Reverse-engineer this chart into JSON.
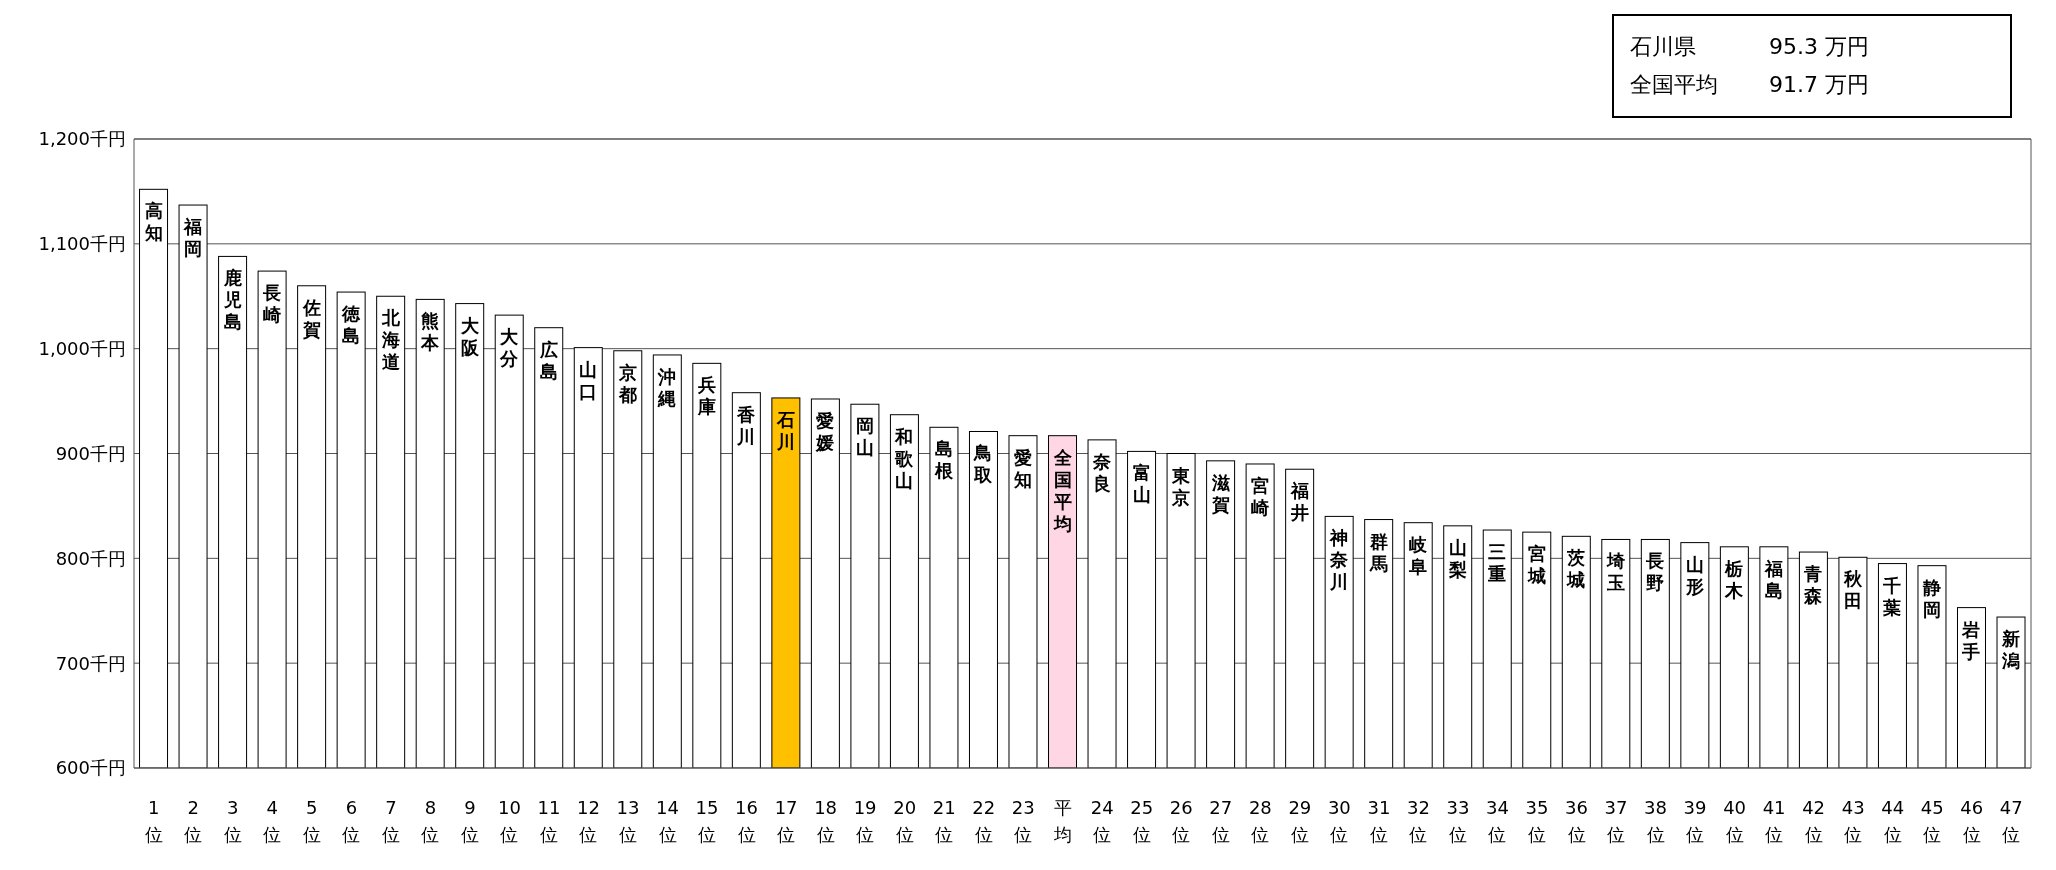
{
  "chart_data": {
    "type": "bar",
    "categories": [
      "1位",
      "2位",
      "3位",
      "4位",
      "5位",
      "6位",
      "7位",
      "8位",
      "9位",
      "10位",
      "11位",
      "12位",
      "13位",
      "14位",
      "15位",
      "16位",
      "17位",
      "18位",
      "19位",
      "20位",
      "21位",
      "22位",
      "23位",
      "平均",
      "24位",
      "25位",
      "26位",
      "27位",
      "28位",
      "29位",
      "30位",
      "31位",
      "32位",
      "33位",
      "34位",
      "35位",
      "36位",
      "37位",
      "38位",
      "39位",
      "40位",
      "41位",
      "42位",
      "43位",
      "44位",
      "45位",
      "46位",
      "47位"
    ],
    "values": [
      1152,
      1137,
      1088,
      1074,
      1060,
      1054,
      1050,
      1047,
      1043,
      1032,
      1020,
      1001,
      998,
      994,
      986,
      958,
      953,
      952,
      947,
      937,
      925,
      921,
      917,
      917,
      913,
      902,
      900,
      893,
      890,
      885,
      840,
      837,
      834,
      831,
      827,
      825,
      821,
      818,
      818,
      815,
      811,
      811,
      806,
      801,
      795,
      793,
      753,
      744
    ],
    "colors": [
      "#ffffff",
      "#ffffff",
      "#ffffff",
      "#ffffff",
      "#ffffff",
      "#ffffff",
      "#ffffff",
      "#ffffff",
      "#ffffff",
      "#ffffff",
      "#ffffff",
      "#ffffff",
      "#ffffff",
      "#ffffff",
      "#ffffff",
      "#ffffff",
      "#ffc000",
      "#ffffff",
      "#ffffff",
      "#ffffff",
      "#ffffff",
      "#ffffff",
      "#ffffff",
      "#ffd6e4",
      "#ffffff",
      "#ffffff",
      "#ffffff",
      "#ffffff",
      "#ffffff",
      "#ffffff",
      "#ffffff",
      "#ffffff",
      "#ffffff",
      "#ffffff",
      "#ffffff",
      "#ffffff",
      "#ffffff",
      "#ffffff",
      "#ffffff",
      "#ffffff",
      "#ffffff",
      "#ffffff",
      "#ffffff",
      "#ffffff",
      "#ffffff",
      "#ffffff",
      "#ffffff",
      "#ffffff"
    ],
    "ylim": [
      600,
      1200
    ],
    "yticks": [
      {
        "value": 600,
        "label": "600千円"
      },
      {
        "value": 700,
        "label": "700千円"
      },
      {
        "value": 800,
        "label": "800千円"
      },
      {
        "value": 900,
        "label": "900千円"
      },
      {
        "value": 1000,
        "label": "1,000千円"
      },
      {
        "value": 1100,
        "label": "1,100千円"
      },
      {
        "value": 1200,
        "label": "1,200千円"
      }
    ],
    "grid": "y",
    "annotations": [
      "石川県　　　 95.3 万円",
      "全国平均　　 91.7 万円",
      {
        "text": "高知",
        "x": "1位",
        "y": 1152
      },
      {
        "text": "福岡",
        "x": "2位",
        "y": 1137
      },
      {
        "text": "鹿児島",
        "x": "3位",
        "y": 1088
      },
      {
        "text": "長崎",
        "x": "4位",
        "y": 1074
      },
      {
        "text": "佐賀",
        "x": "5位",
        "y": 1060
      },
      {
        "text": "徳島",
        "x": "6位",
        "y": 1054
      },
      {
        "text": "北海道",
        "x": "7位",
        "y": 1050
      },
      {
        "text": "熊本",
        "x": "8位",
        "y": 1047
      },
      {
        "text": "大阪",
        "x": "9位",
        "y": 1043
      },
      {
        "text": "大分",
        "x": "10位",
        "y": 1032
      },
      {
        "text": "広島",
        "x": "11位",
        "y": 1020
      },
      {
        "text": "山口",
        "x": "12位",
        "y": 1001
      },
      {
        "text": "京都",
        "x": "13位",
        "y": 998
      },
      {
        "text": "沖縄",
        "x": "14位",
        "y": 994
      },
      {
        "text": "兵庫",
        "x": "15位",
        "y": 986
      },
      {
        "text": "香川",
        "x": "16位",
        "y": 958
      },
      {
        "text": "石川",
        "x": "17位",
        "y": 953
      },
      {
        "text": "愛媛",
        "x": "18位",
        "y": 952
      },
      {
        "text": "岡山",
        "x": "19位",
        "y": 947
      },
      {
        "text": "和歌山",
        "x": "20位",
        "y": 937
      },
      {
        "text": "島根",
        "x": "21位",
        "y": 925
      },
      {
        "text": "鳥取",
        "x": "22位",
        "y": 921
      },
      {
        "text": "愛知",
        "x": "23位",
        "y": 917
      },
      {
        "text": "全国平均",
        "x": "平均",
        "y": 917
      },
      {
        "text": "奈良",
        "x": "24位",
        "y": 913
      },
      {
        "text": "富山",
        "x": "25位",
        "y": 902
      },
      {
        "text": "東京",
        "x": "26位",
        "y": 900
      },
      {
        "text": "滋賀",
        "x": "27位",
        "y": 893
      },
      {
        "text": "宮崎",
        "x": "28位",
        "y": 890
      },
      {
        "text": "福井",
        "x": "29位",
        "y": 885
      },
      {
        "text": "神奈川",
        "x": "30位",
        "y": 840
      },
      {
        "text": "群馬",
        "x": "31位",
        "y": 837
      },
      {
        "text": "岐阜",
        "x": "32位",
        "y": 834
      },
      {
        "text": "山梨",
        "x": "33位",
        "y": 831
      },
      {
        "text": "三重",
        "x": "34位",
        "y": 827
      },
      {
        "text": "宮城",
        "x": "35位",
        "y": 825
      },
      {
        "text": "茨城",
        "x": "36位",
        "y": 821
      },
      {
        "text": "埼玉",
        "x": "37位",
        "y": 818
      },
      {
        "text": "長野",
        "x": "38位",
        "y": 818
      },
      {
        "text": "山形",
        "x": "39位",
        "y": 815
      },
      {
        "text": "栃木",
        "x": "40位",
        "y": 811
      },
      {
        "text": "福島",
        "x": "41位",
        "y": 811
      },
      {
        "text": "青森",
        "x": "42位",
        "y": 806
      },
      {
        "text": "秋田",
        "x": "43位",
        "y": 801
      },
      {
        "text": "千葉",
        "x": "44位",
        "y": 795
      },
      {
        "text": "静岡",
        "x": "45位",
        "y": 793
      },
      {
        "text": "岩手",
        "x": "46位",
        "y": 753
      },
      {
        "text": "新潟",
        "x": "47位",
        "y": 744
      }
    ]
  }
}
